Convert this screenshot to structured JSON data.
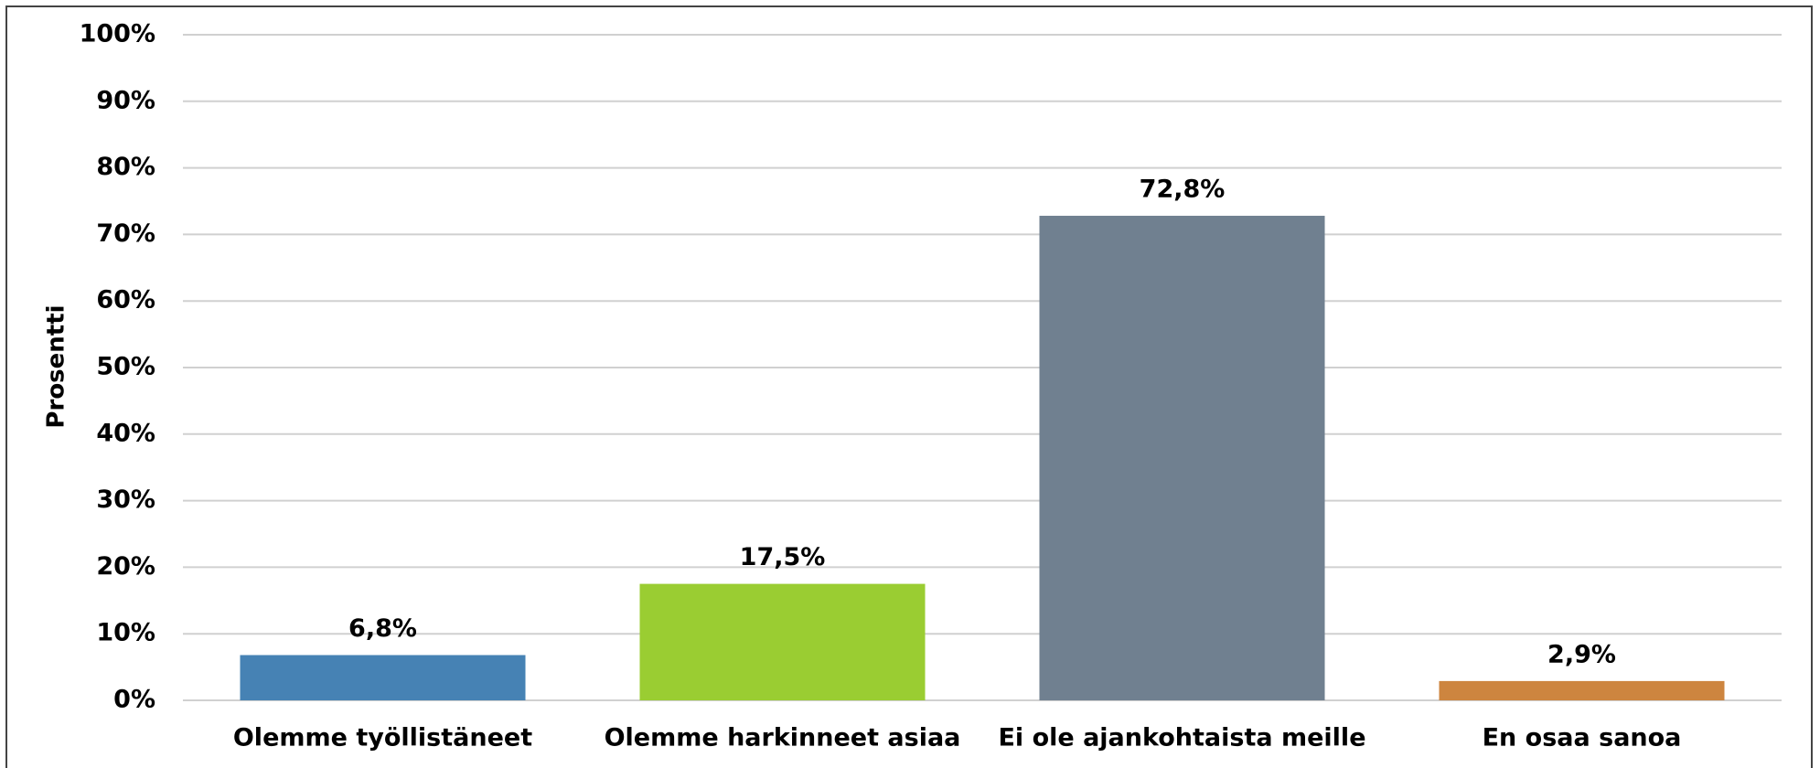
{
  "chart_data": {
    "type": "bar",
    "y_axis_label": "Prosentti",
    "categories": [
      "Olemme työllistäneet",
      "Olemme harkinneet asiaa",
      "Ei ole ajankohtaista meille",
      "En osaa sanoa"
    ],
    "values": [
      6.8,
      17.5,
      72.8,
      2.9
    ],
    "value_labels": [
      "6,8%",
      "17,5%",
      "72,8%",
      "2,9%"
    ],
    "colors": [
      "#4682b4",
      "#9acd32",
      "#708090",
      "#cd853f"
    ],
    "ylim": [
      0,
      100
    ],
    "yticks": [
      {
        "value": 0,
        "label": "0%"
      },
      {
        "value": 10,
        "label": "10%"
      },
      {
        "value": 20,
        "label": "20%"
      },
      {
        "value": 30,
        "label": "30%"
      },
      {
        "value": 40,
        "label": "40%"
      },
      {
        "value": 50,
        "label": "50%"
      },
      {
        "value": 60,
        "label": "60%"
      },
      {
        "value": 70,
        "label": "70%"
      },
      {
        "value": 80,
        "label": "80%"
      },
      {
        "value": 90,
        "label": "90%"
      },
      {
        "value": 100,
        "label": "100%"
      }
    ],
    "grid": true
  }
}
